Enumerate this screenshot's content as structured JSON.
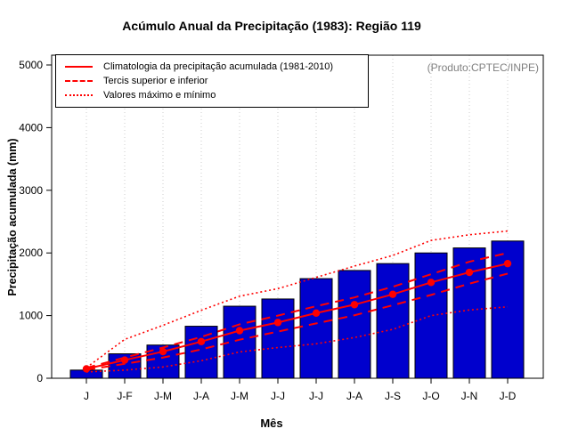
{
  "title": "Acúmulo Anual da Precipitação (1983): Região 119",
  "produto_label": "(Produto:CPTEC/INPE)",
  "legend": {
    "items": [
      {
        "label": "Climatologia da precipitação acumulada (1981-2010)",
        "style": "solid"
      },
      {
        "label": "Tercis superior e inferior",
        "style": "dashed"
      },
      {
        "label": "Valores máximo e mínimo",
        "style": "dotted"
      }
    ]
  },
  "colors": {
    "bar_fill": "#0000cd",
    "bar_border": "#000000",
    "line": "#ff0000",
    "grid": "#cccccc",
    "axis": "#000000",
    "produto_text": "#808080"
  },
  "chart_data": {
    "type": "bar",
    "title": "Acúmulo Anual da Precipitação (1983): Região 119",
    "xlabel": "Mês",
    "ylabel": "Precipitação acumulada (mm)",
    "ylim": [
      0,
      5000
    ],
    "yticks": [
      0,
      1000,
      2000,
      3000,
      4000,
      5000
    ],
    "grid": "vertical-dotted-light",
    "legend_position": "top-left",
    "categories": [
      "J",
      "J-F",
      "J-M",
      "J-A",
      "J-M",
      "J-J",
      "J-J",
      "J-A",
      "J-S",
      "J-O",
      "J-N",
      "J-D"
    ],
    "bars": {
      "name": "Precipitação acumulada 1983",
      "values": [
        130,
        390,
        530,
        830,
        1150,
        1265,
        1590,
        1720,
        1830,
        2000,
        2080,
        2190
      ]
    },
    "series": [
      {
        "name": "Climatologia da precipitação acumulada (1981-2010)",
        "style": "solid",
        "markers": true,
        "values": [
          150,
          290,
          425,
          585,
          760,
          890,
          1040,
          1175,
          1340,
          1530,
          1690,
          1830
        ]
      },
      {
        "name": "Tercil superior",
        "style": "dashed",
        "markers": false,
        "values": [
          165,
          330,
          490,
          660,
          860,
          1000,
          1150,
          1290,
          1460,
          1660,
          1860,
          2000
        ]
      },
      {
        "name": "Tercil inferior",
        "style": "dashed",
        "markers": false,
        "values": [
          135,
          230,
          330,
          460,
          615,
          745,
          875,
          1005,
          1165,
          1330,
          1510,
          1670
        ]
      },
      {
        "name": "Valor máximo",
        "style": "dotted",
        "markers": false,
        "values": [
          170,
          620,
          845,
          1085,
          1310,
          1430,
          1610,
          1790,
          1960,
          2200,
          2290,
          2350
        ]
      },
      {
        "name": "Valor mínimo",
        "style": "dotted",
        "markers": false,
        "values": [
          100,
          130,
          180,
          280,
          420,
          490,
          550,
          650,
          780,
          1000,
          1090,
          1140
        ]
      }
    ]
  }
}
